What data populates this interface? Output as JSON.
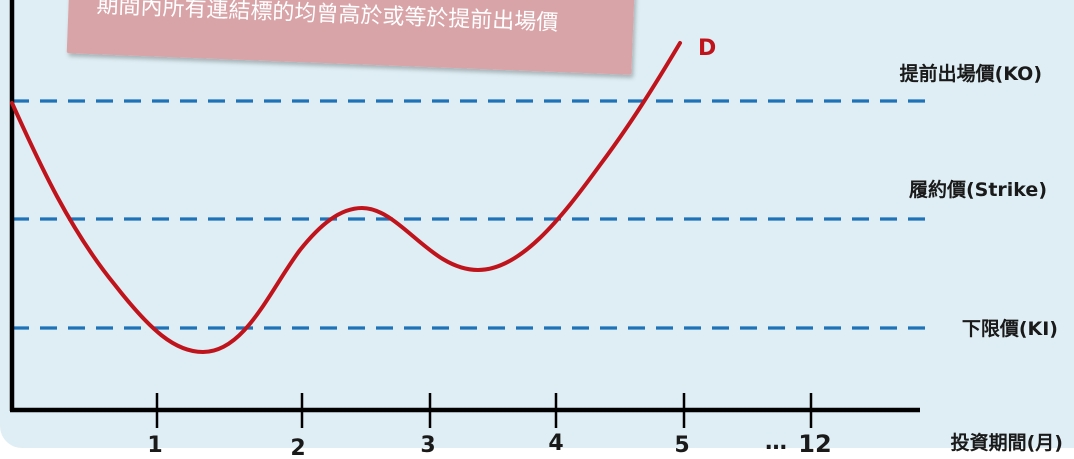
{
  "panel": {
    "background": "#deeef4"
  },
  "callout": {
    "text": "期間內所有連結標的均曾高於或等於提前出場價",
    "color": "#d9a4a8"
  },
  "curve": {
    "label": "D",
    "color": "#c0141c"
  },
  "levels": {
    "color": "#1e72b8",
    "ko": "提前出場價(KO)",
    "strike": "履約價(Strike)",
    "ki": "下限價(KI)"
  },
  "axis": {
    "ticks": [
      "1",
      "2",
      "3",
      "4",
      "5"
    ],
    "ellipsis": "…",
    "last_tick": "12",
    "xlabel": "投資期間(月)"
  }
}
